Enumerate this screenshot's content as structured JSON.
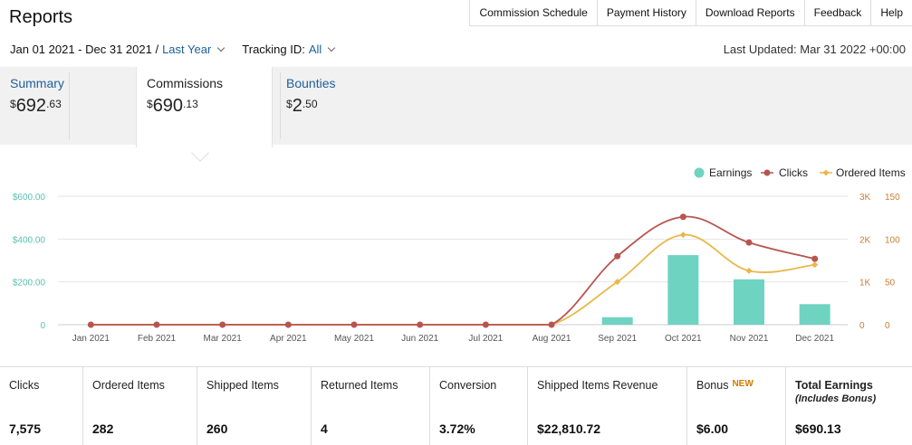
{
  "header": {
    "title": "Reports",
    "links": [
      "Commission Schedule",
      "Payment History",
      "Download Reports",
      "Feedback",
      "Help"
    ]
  },
  "filters": {
    "date_range": "Jan 01 2021 - Dec 31 2021 /",
    "period": "Last Year",
    "tracking_label": "Tracking ID:",
    "tracking_value": "All",
    "last_updated": "Last Updated: Mar 31 2022 +00:00"
  },
  "tabs": [
    {
      "label": "Summary",
      "currency": "$",
      "whole": "692",
      "cents": ".63"
    },
    {
      "label": "Commissions",
      "currency": "$",
      "whole": "690",
      "cents": ".13"
    },
    {
      "label": "Bounties",
      "currency": "$",
      "whole": "2",
      "cents": ".50"
    }
  ],
  "chart_data": {
    "type": "bar+line",
    "categories": [
      "Jan 2021",
      "Feb 2021",
      "Mar 2021",
      "Apr 2021",
      "May 2021",
      "Jun 2021",
      "Jul 2021",
      "Aug 2021",
      "Sep 2021",
      "Oct 2021",
      "Nov 2021",
      "Dec 2021"
    ],
    "series": [
      {
        "name": "Earnings",
        "kind": "bar",
        "axis": "left",
        "color": "#6fd3c1",
        "values": [
          0,
          0,
          0,
          0,
          0,
          0,
          0,
          0,
          35,
          325,
          212,
          96
        ]
      },
      {
        "name": "Clicks",
        "kind": "line",
        "axis": "right1",
        "color": "#b85450",
        "values": [
          0,
          0,
          0,
          0,
          0,
          0,
          0,
          0,
          1600,
          2520,
          1920,
          1540
        ]
      },
      {
        "name": "Ordered Items",
        "kind": "line",
        "axis": "right2",
        "color": "#e8b84a",
        "values": [
          0,
          0,
          0,
          0,
          0,
          0,
          0,
          0,
          50,
          105,
          63,
          70
        ]
      }
    ],
    "y_left": {
      "ticks": [
        "0",
        "$200.00",
        "$400.00",
        "$600.00"
      ],
      "max": 600
    },
    "y_right1": {
      "ticks": [
        "0",
        "1K",
        "2K",
        "3K"
      ],
      "max": 3000
    },
    "y_right2": {
      "ticks": [
        "0",
        "50",
        "100",
        "150"
      ],
      "max": 150
    },
    "grid": true,
    "legend_position": "top-right"
  },
  "stats": [
    {
      "label": "Clicks",
      "value": "7,575"
    },
    {
      "label": "Ordered Items",
      "value": "282"
    },
    {
      "label": "Shipped Items",
      "value": "260"
    },
    {
      "label": "Returned Items",
      "value": "4"
    },
    {
      "label": "Conversion",
      "value": "3.72%"
    },
    {
      "label": "Shipped Items Revenue",
      "value": "$22,810.72"
    },
    {
      "label": "Bonus",
      "badge": "NEW",
      "value": "$6.00"
    },
    {
      "label": "Total Earnings",
      "sub": "(Includes Bonus)",
      "value": "$690.13"
    }
  ]
}
